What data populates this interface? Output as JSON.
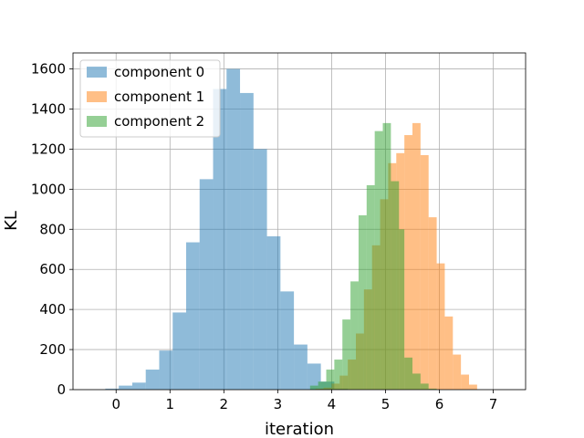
{
  "chart_data": {
    "type": "histogram",
    "xlabel": "iteration",
    "ylabel": "KL",
    "xlim": [
      -0.8,
      7.6
    ],
    "ylim": [
      0,
      1680
    ],
    "xticks": [
      0,
      1,
      2,
      3,
      4,
      5,
      6,
      7
    ],
    "yticks": [
      0,
      200,
      400,
      600,
      800,
      1000,
      1200,
      1400,
      1600
    ],
    "grid": true,
    "legend_position": "upper-left",
    "series": [
      {
        "name": "component 0",
        "color": "#1f77b4",
        "opacity": 0.5,
        "bin_edges": [
          -0.2,
          0.05,
          0.3,
          0.55,
          0.8,
          1.05,
          1.3,
          1.55,
          1.8,
          2.05,
          2.3,
          2.55,
          2.8,
          3.05,
          3.3,
          3.55,
          3.8,
          4.05,
          4.3
        ],
        "counts": [
          5,
          20,
          35,
          100,
          195,
          385,
          735,
          1050,
          1500,
          1600,
          1480,
          1200,
          765,
          490,
          225,
          130,
          40,
          5
        ]
      },
      {
        "name": "component 1",
        "color": "#ff7f0e",
        "opacity": 0.5,
        "bin_edges": [
          3.7,
          3.85,
          4.0,
          4.15,
          4.3,
          4.45,
          4.6,
          4.75,
          4.9,
          5.05,
          5.2,
          5.35,
          5.5,
          5.65,
          5.8,
          5.95,
          6.1,
          6.25,
          6.4,
          6.55,
          6.7
        ],
        "counts": [
          5,
          10,
          30,
          70,
          150,
          280,
          500,
          720,
          950,
          1130,
          1180,
          1270,
          1330,
          1170,
          860,
          630,
          365,
          175,
          75,
          25
        ]
      },
      {
        "name": "component 2",
        "color": "#2ca02c",
        "opacity": 0.5,
        "bin_edges": [
          3.6,
          3.75,
          3.9,
          4.05,
          4.2,
          4.35,
          4.5,
          4.65,
          4.8,
          4.95,
          5.1,
          5.25,
          5.35,
          5.5,
          5.65,
          5.8,
          5.95
        ],
        "counts": [
          20,
          40,
          100,
          150,
          350,
          540,
          870,
          1020,
          1290,
          1330,
          1040,
          800,
          160,
          80,
          30,
          5
        ]
      }
    ]
  }
}
